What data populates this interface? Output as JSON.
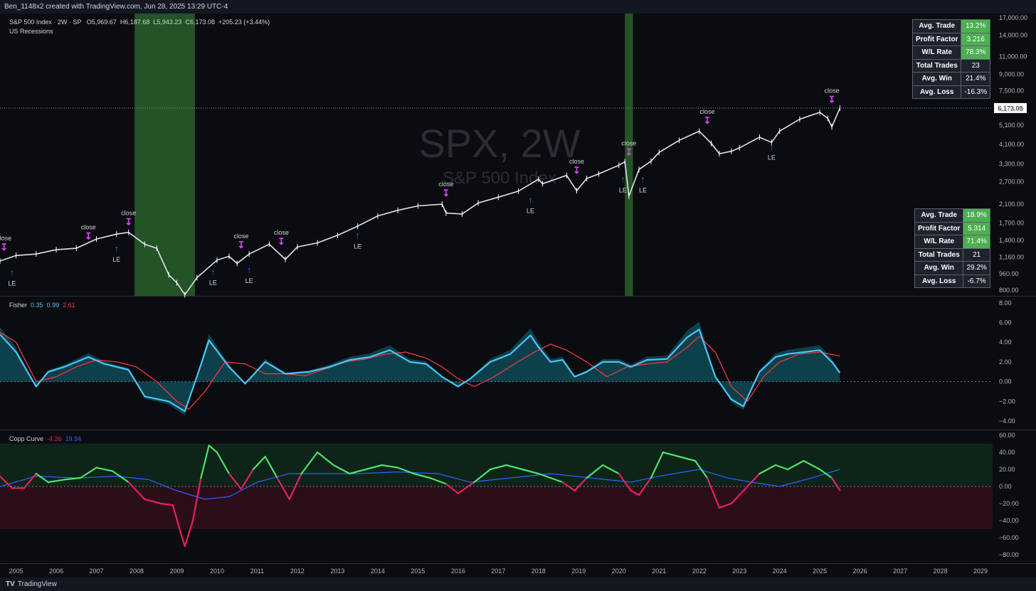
{
  "header": {
    "attribution": "Ben_1148x2 created with TradingView.com, Jun 28, 2025 13:29 UTC-4"
  },
  "main_pane": {
    "symbol_line": "S&P 500 Index · 2W · SP",
    "ohlc": {
      "o_label": "O",
      "o": "5,969.67",
      "h_label": "H",
      "h": "6,187.68",
      "l_label": "L",
      "l": "5,943.23",
      "c_label": "C",
      "c": "6,173.08",
      "change": "+205.23 (+3.44%)"
    },
    "overlay_label": "US Recessions",
    "watermark_symbol": "SPX, 2W",
    "watermark_name": "S&P 500 Index",
    "last_price": "6,173.08",
    "colors": {
      "recession": "#2e6b30",
      "last_price_bg": "#ffffff",
      "entry": "#2962ff",
      "exit": "#e040fb"
    }
  },
  "stats_top": [
    {
      "label": "Avg. Trade",
      "value": "13.2%",
      "style": "green"
    },
    {
      "label": "Profit Factor",
      "value": "3.216",
      "style": "green"
    },
    {
      "label": "W/L Rate",
      "value": "78.3%",
      "style": "green"
    },
    {
      "label": "Total Trades",
      "value": "23",
      "style": "dark"
    },
    {
      "label": "Avg. Win",
      "value": "21.4%",
      "style": "dark"
    },
    {
      "label": "Avg. Loss",
      "value": "-16.3%",
      "style": "dark"
    }
  ],
  "stats_bottom": [
    {
      "label": "Avg. Trade",
      "value": "18.9%",
      "style": "green"
    },
    {
      "label": "Profit Factor",
      "value": "5.314",
      "style": "green"
    },
    {
      "label": "W/L Rate",
      "value": "71.4%",
      "style": "green"
    },
    {
      "label": "Total Trades",
      "value": "21",
      "style": "dark"
    },
    {
      "label": "Avg. Win",
      "value": "29.2%",
      "style": "dark"
    },
    {
      "label": "Avg. Loss",
      "value": "-6.7%",
      "style": "dark"
    }
  ],
  "fisher_pane": {
    "name": "Fisher",
    "v1": "0.35",
    "v2": "0.99",
    "v3": "2.61",
    "colors": {
      "fast": "#4fc3f7",
      "slow": "#f23645",
      "hist": "#0e6b7a"
    }
  },
  "copp_pane": {
    "name": "Copp Curve",
    "v1": "-4.36",
    "v2": "19.94",
    "colors": {
      "up": "#4be36b",
      "down": "#e91e63",
      "signal": "#2962ff"
    }
  },
  "footer": {
    "brand": "TradingView"
  },
  "chart_data": [
    {
      "type": "line",
      "title": "S&P 500 Index · 2W · SP",
      "scale": "log",
      "ylim": [
        800,
        17000
      ],
      "xlim": [
        2004.6,
        2029.3
      ],
      "y_ticks": [
        "17,000.00",
        "14,000.00",
        "11,000.00",
        "9,000.00",
        "7,500.00",
        "6,100.00",
        "5,100.00",
        "4,100.00",
        "3,300.00",
        "2,700.00",
        "2,100.00",
        "1,700.00",
        "1,400.00",
        "1,160.00",
        "960.00",
        "800.00"
      ],
      "x_ticks": [
        "2005",
        "2006",
        "2007",
        "2008",
        "2009",
        "2010",
        "2011",
        "2012",
        "2013",
        "2014",
        "2015",
        "2016",
        "2017",
        "2018",
        "2019",
        "2020",
        "2021",
        "2022",
        "2023",
        "2024",
        "2025",
        "2026",
        "2027",
        "2028",
        "2029"
      ],
      "recessions": [
        [
          2007.95,
          2009.45
        ],
        [
          2020.15,
          2020.35
        ]
      ],
      "series": [
        {
          "name": "SPX",
          "x": [
            2004.6,
            2005.0,
            2005.5,
            2006.0,
            2006.5,
            2007.0,
            2007.5,
            2007.8,
            2008.2,
            2008.5,
            2008.8,
            2009.0,
            2009.2,
            2009.5,
            2010.0,
            2010.3,
            2010.5,
            2010.8,
            2011.3,
            2011.7,
            2012.0,
            2012.5,
            2013.0,
            2013.5,
            2014.0,
            2014.5,
            2015.0,
            2015.6,
            2015.7,
            2016.1,
            2016.5,
            2017.0,
            2017.5,
            2018.0,
            2018.1,
            2018.7,
            2018.95,
            2019.2,
            2019.5,
            2020.0,
            2020.15,
            2020.25,
            2020.5,
            2020.8,
            2021.0,
            2021.5,
            2022.0,
            2022.3,
            2022.5,
            2022.8,
            2023.0,
            2023.5,
            2023.8,
            2024.0,
            2024.5,
            2025.0,
            2025.2,
            2025.3,
            2025.5
          ],
          "values": [
            1110,
            1180,
            1200,
            1260,
            1280,
            1420,
            1500,
            1530,
            1340,
            1280,
            950,
            870,
            760,
            920,
            1120,
            1170,
            1080,
            1200,
            1340,
            1130,
            1300,
            1360,
            1480,
            1640,
            1840,
            1960,
            2060,
            2100,
            1900,
            1880,
            2130,
            2270,
            2430,
            2780,
            2640,
            2900,
            2440,
            2800,
            2950,
            3250,
            3380,
            2300,
            3100,
            3400,
            3750,
            4300,
            4760,
            4150,
            3700,
            3800,
            3950,
            4450,
            4200,
            4770,
            5450,
            5880,
            5500,
            5000,
            6173
          ]
        }
      ],
      "annotations": [
        {
          "label": "close",
          "x": 2004.7,
          "y_price": 1175
        },
        {
          "label": "LE",
          "x": 2004.9,
          "y_price": 1070
        },
        {
          "label": "close",
          "x": 2006.8,
          "y_price": 1330
        },
        {
          "label": "close",
          "x": 2007.8,
          "y_price": 1560
        },
        {
          "label": "LE",
          "x": 2007.5,
          "y_price": 1400
        },
        {
          "label": "LE",
          "x": 2009.9,
          "y_price": 1080
        },
        {
          "label": "close",
          "x": 2010.6,
          "y_price": 1200
        },
        {
          "label": "LE",
          "x": 2010.8,
          "y_price": 1100
        },
        {
          "label": "close",
          "x": 2011.6,
          "y_price": 1250
        },
        {
          "label": "LE",
          "x": 2013.5,
          "y_price": 1620
        },
        {
          "label": "close",
          "x": 2015.7,
          "y_price": 2150
        },
        {
          "label": "LE",
          "x": 2017.8,
          "y_price": 2420
        },
        {
          "label": "close",
          "x": 2018.95,
          "y_price": 2780
        },
        {
          "label": "close",
          "x": 2020.25,
          "y_price": 3400
        },
        {
          "label": "LE",
          "x": 2020.1,
          "y_price": 3050
        },
        {
          "label": "LE",
          "x": 2020.6,
          "y_price": 3050
        },
        {
          "label": "close",
          "x": 2022.2,
          "y_price": 4850
        },
        {
          "label": "LE",
          "x": 2023.8,
          "y_price": 4400
        },
        {
          "label": "close",
          "x": 2025.3,
          "y_price": 6150
        }
      ]
    },
    {
      "type": "area",
      "title": "Fisher",
      "ylim": [
        -4.5,
        8.2
      ],
      "y_ticks": [
        8,
        6,
        4,
        2,
        0,
        -2,
        -4
      ],
      "series": [
        {
          "name": "0.35",
          "x": [
            2004.6,
            2005.0,
            2005.5,
            2005.8,
            2006.2,
            2006.8,
            2007.2,
            2007.8,
            2008.2,
            2008.8,
            2009.2,
            2009.5,
            2009.8,
            2010.3,
            2010.7,
            2011.2,
            2011.7,
            2012.3,
            2012.8,
            2013.3,
            2013.8,
            2014.3,
            2014.8,
            2015.2,
            2015.6,
            2016.0,
            2016.3,
            2016.8,
            2017.3,
            2017.8,
            2018.0,
            2018.3,
            2018.6,
            2018.9,
            2019.2,
            2019.6,
            2020.0,
            2020.3,
            2020.7,
            2021.2,
            2021.7,
            2022.0,
            2022.4,
            2022.8,
            2023.1,
            2023.5,
            2023.9,
            2024.2,
            2024.6,
            2025.0,
            2025.3,
            2025.5
          ],
          "values": [
            4.8,
            3.0,
            -0.5,
            1.0,
            1.5,
            2.5,
            1.8,
            1.2,
            -1.5,
            -2.0,
            -3.0,
            0.5,
            4.2,
            1.5,
            -0.2,
            2.0,
            0.8,
            1.0,
            1.5,
            2.2,
            2.5,
            3.2,
            2.0,
            1.8,
            0.5,
            -0.5,
            0.3,
            2.0,
            2.8,
            4.7,
            3.5,
            2.0,
            2.2,
            0.5,
            1.0,
            2.0,
            2.0,
            1.5,
            2.2,
            2.3,
            4.5,
            5.3,
            0.5,
            -1.8,
            -2.5,
            1.0,
            2.5,
            2.8,
            3.0,
            3.2,
            2.0,
            0.9
          ]
        },
        {
          "name": "0.99",
          "x": [
            2004.6,
            2005.0,
            2005.5,
            2006.0,
            2006.5,
            2007.0,
            2007.5,
            2008.0,
            2008.5,
            2009.0,
            2009.3,
            2009.7,
            2010.2,
            2010.7,
            2011.2,
            2011.7,
            2012.2,
            2012.7,
            2013.2,
            2013.7,
            2014.2,
            2014.7,
            2015.2,
            2015.6,
            2016.0,
            2016.4,
            2016.9,
            2017.4,
            2017.9,
            2018.3,
            2018.7,
            2019.2,
            2019.7,
            2020.2,
            2020.7,
            2021.2,
            2021.7,
            2022.0,
            2022.4,
            2022.8,
            2023.2,
            2023.6,
            2024.0,
            2024.5,
            2025.0,
            2025.5
          ],
          "values": [
            5.0,
            4.0,
            0.0,
            0.5,
            1.5,
            2.2,
            2.0,
            1.5,
            0.0,
            -2.0,
            -2.8,
            -1.0,
            2.0,
            1.8,
            0.8,
            0.8,
            0.6,
            1.3,
            2.0,
            2.3,
            2.8,
            3.0,
            2.4,
            1.5,
            0.3,
            -0.5,
            0.5,
            1.8,
            3.0,
            3.8,
            3.2,
            2.0,
            0.5,
            1.5,
            1.8,
            2.0,
            3.5,
            4.6,
            3.0,
            -0.5,
            -2.0,
            0.5,
            2.0,
            2.8,
            3.0,
            2.6
          ]
        }
      ]
    },
    {
      "type": "line",
      "title": "Copp Curve",
      "ylim": [
        -80,
        60
      ],
      "y_ticks": [
        60,
        40,
        20,
        0,
        -20,
        -40,
        -60,
        -80
      ],
      "series": [
        {
          "name": "-4.36",
          "x": [
            2004.6,
            2004.9,
            2005.2,
            2005.5,
            2005.8,
            2006.2,
            2006.6,
            2007.0,
            2007.4,
            2007.8,
            2008.2,
            2008.6,
            2008.9,
            2009.1,
            2009.2,
            2009.4,
            2009.6,
            2009.8,
            2010.0,
            2010.3,
            2010.6,
            2010.9,
            2011.2,
            2011.5,
            2011.8,
            2012.1,
            2012.5,
            2012.9,
            2013.3,
            2013.7,
            2014.1,
            2014.5,
            2014.9,
            2015.3,
            2015.7,
            2016.0,
            2016.4,
            2016.8,
            2017.2,
            2017.6,
            2018.0,
            2018.3,
            2018.6,
            2018.9,
            2019.2,
            2019.6,
            2020.0,
            2020.3,
            2020.5,
            2020.8,
            2021.1,
            2021.5,
            2021.9,
            2022.2,
            2022.5,
            2022.8,
            2023.1,
            2023.5,
            2023.9,
            2024.2,
            2024.6,
            2025.0,
            2025.3,
            2025.5
          ],
          "values": [
            12,
            -2,
            -2,
            15,
            5,
            8,
            10,
            22,
            18,
            5,
            -15,
            -20,
            -22,
            -55,
            -70,
            -40,
            10,
            48,
            40,
            15,
            -3,
            20,
            35,
            10,
            -15,
            15,
            40,
            25,
            15,
            20,
            25,
            22,
            15,
            10,
            3,
            -8,
            5,
            20,
            25,
            20,
            15,
            10,
            5,
            -5,
            10,
            25,
            15,
            -5,
            -10,
            10,
            40,
            35,
            30,
            10,
            -25,
            -20,
            -5,
            15,
            25,
            20,
            30,
            20,
            10,
            -4.36
          ]
        },
        {
          "name": "19.94",
          "x": [
            2004.6,
            2005.5,
            2006.5,
            2007.5,
            2008.3,
            2009.0,
            2009.7,
            2010.3,
            2011.0,
            2011.8,
            2012.5,
            2013.5,
            2014.5,
            2015.5,
            2016.3,
            2017.3,
            2018.3,
            2019.3,
            2020.3,
            2021.0,
            2022.0,
            2022.7,
            2023.3,
            2024.0,
            2024.8,
            2025.5
          ],
          "values": [
            0,
            12,
            10,
            12,
            8,
            -5,
            -15,
            -12,
            5,
            15,
            15,
            15,
            17,
            15,
            5,
            10,
            15,
            10,
            5,
            12,
            20,
            10,
            5,
            0,
            10,
            19.94
          ]
        }
      ]
    }
  ]
}
